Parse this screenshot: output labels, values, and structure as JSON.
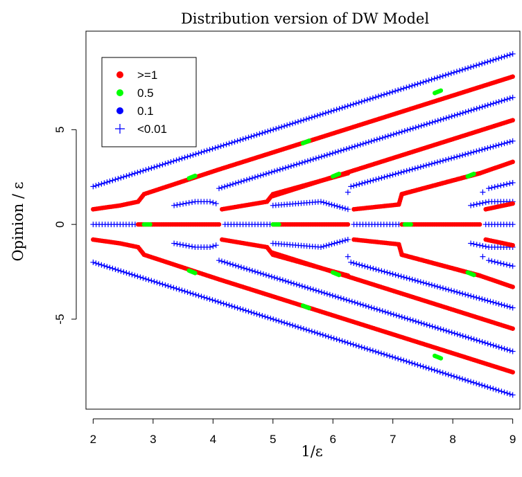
{
  "chart_data": {
    "type": "scatter",
    "title": "Distribution version of DW Model",
    "xlabel": "1/ε",
    "ylabel": "Opinion / ε",
    "xlim": [
      1.88,
      9.12
    ],
    "ylim": [
      -9.75,
      10.2
    ],
    "xticks": [
      2,
      3,
      4,
      5,
      6,
      7,
      8,
      9
    ],
    "yticks": [
      -5,
      0,
      5
    ],
    "xtick_labels": [
      "2",
      "3",
      "4",
      "5",
      "6",
      "7",
      "8",
      "9"
    ],
    "ytick_labels": [
      "-5",
      "0",
      "5"
    ],
    "legend": {
      "position": "top-left",
      "entries": [
        {
          "label": ">=1",
          "color": "#ff0000",
          "marker": "dot"
        },
        {
          "label": "0.5",
          "color": "#00ff00",
          "marker": "dot"
        },
        {
          "label": "0.1",
          "color": "#0000ff",
          "marker": "dot"
        },
        {
          "label": "<0.01",
          "color": "#0000ff",
          "marker": "plus"
        }
      ]
    },
    "series": [
      {
        "x": [
          2.0,
          4.5,
          6.2,
          9.0
        ],
        "y": [
          2.0,
          4.5,
          6.2,
          9.0
        ],
        "mass": "<0.01"
      },
      {
        "x": [
          2.0,
          4.5,
          6.2,
          9.0
        ],
        "y": [
          -2.0,
          -4.5,
          -6.2,
          -9.0
        ],
        "mass": "<0.01"
      },
      {
        "x": [
          2.0,
          2.45,
          2.75,
          2.85,
          4.1,
          5.5,
          7.0,
          9.0
        ],
        "y": [
          0.8,
          1.0,
          1.2,
          1.6,
          2.9,
          4.3,
          5.8,
          7.8
        ],
        "mass": ">=1"
      },
      {
        "x": [
          2.0,
          2.45,
          2.75,
          2.85,
          4.1,
          5.5,
          7.0,
          9.0
        ],
        "y": [
          -0.8,
          -1.0,
          -1.2,
          -1.6,
          -2.9,
          -4.3,
          -5.8,
          -7.8
        ],
        "mass": ">=1"
      },
      {
        "x": [
          2.0,
          2.7
        ],
        "y": [
          0.0,
          0.0
        ],
        "mass": "<0.01"
      },
      {
        "x": [
          2.75,
          4.1
        ],
        "y": [
          0.0,
          0.0
        ],
        "mass": ">=1"
      },
      {
        "x": [
          4.2,
          4.95
        ],
        "y": [
          0.0,
          0.0
        ],
        "mass": "<0.01"
      },
      {
        "x": [
          5.0,
          6.25
        ],
        "y": [
          0.0,
          0.0
        ],
        "mass": ">=1"
      },
      {
        "x": [
          6.35,
          7.1
        ],
        "y": [
          0.0,
          0.0
        ],
        "mass": "<0.01"
      },
      {
        "x": [
          7.15,
          8.45
        ],
        "y": [
          0.0,
          0.0
        ],
        "mass": ">=1"
      },
      {
        "x": [
          8.55,
          9.0
        ],
        "y": [
          0.0,
          0.0
        ],
        "mass": "<0.01"
      },
      {
        "x": [
          3.35,
          3.7,
          3.95,
          4.05
        ],
        "y": [
          1.0,
          1.2,
          1.2,
          1.1
        ],
        "mass": "<0.01"
      },
      {
        "x": [
          3.35,
          3.7,
          3.95,
          4.05
        ],
        "y": [
          -1.0,
          -1.2,
          -1.2,
          -1.1
        ],
        "mass": "<0.01"
      },
      {
        "x": [
          4.15,
          4.9,
          5.0,
          6.25
        ],
        "y": [
          0.8,
          1.2,
          1.6,
          2.7
        ],
        "mass": ">=1"
      },
      {
        "x": [
          4.15,
          4.9,
          5.0,
          6.25
        ],
        "y": [
          -0.8,
          -1.2,
          -1.6,
          -2.7
        ],
        "mass": ">=1"
      },
      {
        "x": [
          4.1,
          9.0
        ],
        "y": [
          1.9,
          6.7
        ],
        "mass": "<0.01"
      },
      {
        "x": [
          4.1,
          9.0
        ],
        "y": [
          -1.9,
          -6.7
        ],
        "mass": "<0.01"
      },
      {
        "x": [
          5.0,
          5.8,
          6.25
        ],
        "y": [
          1.0,
          1.2,
          0.8
        ],
        "mass": "<0.01"
      },
      {
        "x": [
          5.0,
          5.8,
          6.25
        ],
        "y": [
          -1.0,
          -1.2,
          -0.8
        ],
        "mass": "<0.01"
      },
      {
        "x": [
          5.0,
          6.0,
          7.0,
          8.0,
          9.0
        ],
        "y": [
          1.5,
          2.5,
          3.5,
          4.5,
          5.5
        ],
        "mass": ">=1"
      },
      {
        "x": [
          5.0,
          6.0,
          7.0,
          8.0,
          9.0
        ],
        "y": [
          -1.5,
          -2.5,
          -3.5,
          -4.5,
          -5.5
        ],
        "mass": ">=1"
      },
      {
        "x": [
          6.35,
          7.1,
          7.15,
          8.45
        ],
        "y": [
          0.8,
          1.05,
          1.6,
          2.7
        ],
        "mass": ">=1"
      },
      {
        "x": [
          6.35,
          7.1,
          7.15,
          8.45
        ],
        "y": [
          -0.8,
          -1.05,
          -1.6,
          -2.7
        ],
        "mass": ">=1"
      },
      {
        "x": [
          6.3,
          9.0
        ],
        "y": [
          2.0,
          4.4
        ],
        "mass": "<0.01"
      },
      {
        "x": [
          6.3,
          9.0
        ],
        "y": [
          -2.0,
          -4.4
        ],
        "mass": "<0.01"
      },
      {
        "x": [
          7.15,
          8.45,
          9.0
        ],
        "y": [
          1.6,
          2.7,
          3.3
        ],
        "mass": ">=1"
      },
      {
        "x": [
          7.15,
          8.45,
          9.0
        ],
        "y": [
          -1.6,
          -2.7,
          -3.3
        ],
        "mass": ">=1"
      },
      {
        "x": [
          8.3,
          8.6,
          9.0
        ],
        "y": [
          1.0,
          1.2,
          1.2
        ],
        "mass": "<0.01"
      },
      {
        "x": [
          8.3,
          8.6,
          9.0
        ],
        "y": [
          -1.0,
          -1.2,
          -1.2
        ],
        "mass": "<0.01"
      },
      {
        "x": [
          8.6,
          9.0
        ],
        "y": [
          1.9,
          2.2
        ],
        "mass": "<0.01"
      },
      {
        "x": [
          8.6,
          9.0
        ],
        "y": [
          -1.9,
          -2.2
        ],
        "mass": "<0.01"
      },
      {
        "x": [
          8.55,
          9.0
        ],
        "y": [
          0.8,
          1.1
        ],
        "mass": ">=1"
      },
      {
        "x": [
          8.55,
          9.0
        ],
        "y": [
          -0.8,
          -1.1
        ],
        "mass": ">=1"
      }
    ],
    "isolated_points": [
      {
        "x": 6.25,
        "y": 1.7,
        "mass": "<0.01"
      },
      {
        "x": 6.25,
        "y": -1.7,
        "mass": "<0.01"
      },
      {
        "x": 8.5,
        "y": 1.7,
        "mass": "<0.01"
      },
      {
        "x": 8.5,
        "y": -1.7,
        "mass": "<0.01"
      }
    ],
    "green_points": [
      {
        "x": 3.65,
        "y": 2.5
      },
      {
        "x": 3.65,
        "y": -2.5
      },
      {
        "x": 2.9,
        "y": 0.0
      },
      {
        "x": 5.05,
        "y": 0.0
      },
      {
        "x": 7.25,
        "y": 0.0
      },
      {
        "x": 6.05,
        "y": 2.6
      },
      {
        "x": 6.05,
        "y": -2.6
      },
      {
        "x": 8.3,
        "y": 2.6
      },
      {
        "x": 8.3,
        "y": -2.6
      },
      {
        "x": 7.75,
        "y": 7.0
      },
      {
        "x": 7.75,
        "y": -7.0
      },
      {
        "x": 5.55,
        "y": 4.35
      },
      {
        "x": 5.55,
        "y": -4.35
      }
    ]
  }
}
